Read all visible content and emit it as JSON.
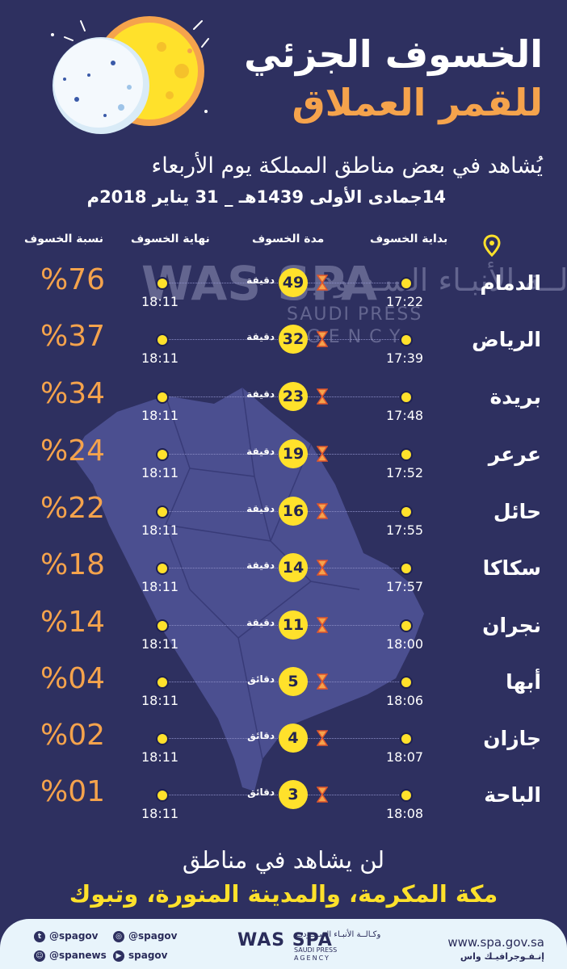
{
  "header": {
    "title_line1": "الخسوف الجزئي",
    "title_line2": "للقمر العملاق",
    "subtitle": "يُشاهد في بعض مناطق المملكة يوم الأربعاء",
    "date": "14جمادى الأولى 1439هـ _ 31 يناير 2018م"
  },
  "columns": {
    "start": "بداية الخسوف",
    "duration": "مدة الخسوف",
    "end": "نهاية الخسوف",
    "percent": "نسبة الخسوف"
  },
  "rows": [
    {
      "city": "الدمام",
      "start": "17:22",
      "duration": "49",
      "unit": "دقيقة",
      "end": "18:11",
      "percent": "%76"
    },
    {
      "city": "الرياض",
      "start": "17:39",
      "duration": "32",
      "unit": "دقيقة",
      "end": "18:11",
      "percent": "%37"
    },
    {
      "city": "بريدة",
      "start": "17:48",
      "duration": "23",
      "unit": "دقيقة",
      "end": "18:11",
      "percent": "%34"
    },
    {
      "city": "عرعر",
      "start": "17:52",
      "duration": "19",
      "unit": "دقيقة",
      "end": "18:11",
      "percent": "%24"
    },
    {
      "city": "حائل",
      "start": "17:55",
      "duration": "16",
      "unit": "دقيقة",
      "end": "18:11",
      "percent": "%22"
    },
    {
      "city": "سكاكا",
      "start": "17:57",
      "duration": "14",
      "unit": "دقيقة",
      "end": "18:11",
      "percent": "%18"
    },
    {
      "city": "نجران",
      "start": "18:00",
      "duration": "11",
      "unit": "دقيقة",
      "end": "18:11",
      "percent": "%14"
    },
    {
      "city": "أبها",
      "start": "18:06",
      "duration": "5",
      "unit": "دقائق",
      "end": "18:11",
      "percent": "%04"
    },
    {
      "city": "جازان",
      "start": "18:07",
      "duration": "4",
      "unit": "دقائق",
      "end": "18:11",
      "percent": "%02"
    },
    {
      "city": "الباحة",
      "start": "18:08",
      "duration": "3",
      "unit": "دقائق",
      "end": "18:11",
      "percent": "%01"
    }
  ],
  "watermark": {
    "arabic": "وكـالــة الأنبـاء السـعـوديـة",
    "english_line1": "SAUDI PRESS",
    "english_line2": "AGENCY",
    "mark": "WAS SPA"
  },
  "bottom": {
    "line1": "لن يشاهد في مناطق",
    "line2": "مكة المكرمة، والمدينة المنورة، وتبوك"
  },
  "footer": {
    "social": [
      {
        "handle": "@spagov",
        "icon": "twitter-icon"
      },
      {
        "handle": "@spagov",
        "icon": "instagram-icon"
      },
      {
        "handle": "@spanews",
        "icon": "snapchat-icon"
      },
      {
        "handle": "spagov",
        "icon": "youtube-icon"
      }
    ],
    "logo_mark": "WAS SPA",
    "logo_arabic": "وكـالــة الأنبـاء السـعـوديـة",
    "logo_en1": "SAUDI PRESS",
    "logo_en2": "AGENCY",
    "website": "www.spa.gov.sa",
    "tagline": "إنـفـوجرافيـك واس"
  },
  "colors": {
    "background": "#2e3060",
    "accent_orange": "#f5a34c",
    "accent_yellow": "#ffe12b",
    "map": "#4b4f90",
    "footer_bg": "#e8f4fb"
  }
}
